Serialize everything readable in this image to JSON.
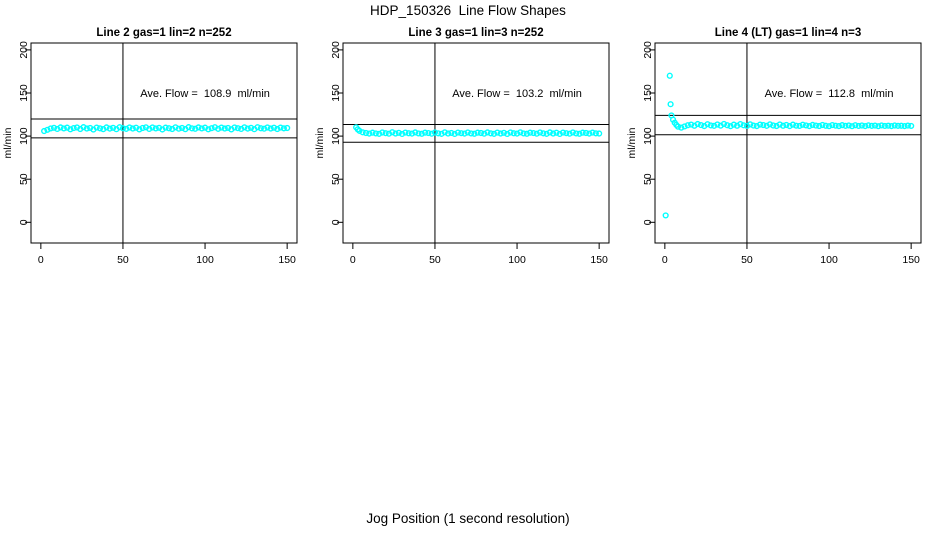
{
  "page": {
    "title": "HDP_150326  Line Flow Shapes",
    "xlabel": "Jog Position (1 second resolution)"
  },
  "colors": {
    "points": "#00ffff",
    "axis": "#000000",
    "background": "#ffffff"
  },
  "chart_data": [
    {
      "type": "scatter",
      "title": "Line 2 gas=1 lin=2 n=252",
      "annotation": "Ave. Flow =  108.9  ml/min",
      "ave_flow": 108.9,
      "n": 252,
      "ylabel": "ml/min",
      "x_ticks": [
        "0",
        "50",
        "100",
        "150"
      ],
      "x_tick_values": [
        0,
        50,
        100,
        150
      ],
      "y_ticks": [
        "0",
        "50",
        "100",
        "150",
        "200"
      ],
      "y_tick_values": [
        0,
        50,
        100,
        150,
        200
      ],
      "x_range": [
        -6,
        156
      ],
      "y_range": [
        -24,
        208
      ],
      "grid": false,
      "vline_x": 50,
      "hlines": [
        119.8,
        98.0
      ],
      "annotation_pos": [
        100,
        150
      ],
      "outliers": [],
      "points": [
        [
          2,
          105.9
        ],
        [
          4,
          107.3
        ],
        [
          6,
          108.9
        ],
        [
          8,
          109.6
        ],
        [
          10,
          108.3
        ],
        [
          12,
          110.1
        ],
        [
          14,
          108.9
        ],
        [
          16,
          109.8
        ],
        [
          18,
          107.9
        ],
        [
          20,
          109.3
        ],
        [
          22,
          110.0
        ],
        [
          24,
          108.2
        ],
        [
          26,
          110.4
        ],
        [
          28,
          108.8
        ],
        [
          30,
          109.5
        ],
        [
          32,
          107.6
        ],
        [
          34,
          109.9
        ],
        [
          36,
          109.0
        ],
        [
          38,
          108.1
        ],
        [
          40,
          110.1
        ],
        [
          42,
          108.7
        ],
        [
          44,
          109.6
        ],
        [
          46,
          108.0
        ],
        [
          48,
          110.3
        ],
        [
          50,
          109.1
        ],
        [
          52,
          108.4
        ],
        [
          54,
          110.0
        ],
        [
          56,
          108.8
        ],
        [
          58,
          109.7
        ],
        [
          60,
          107.8
        ],
        [
          62,
          109.4
        ],
        [
          64,
          110.2
        ],
        [
          66,
          108.3
        ],
        [
          68,
          110.0
        ],
        [
          70,
          108.9
        ],
        [
          72,
          109.6
        ],
        [
          74,
          107.7
        ],
        [
          76,
          109.8
        ],
        [
          78,
          109.1
        ],
        [
          80,
          108.2
        ],
        [
          82,
          110.2
        ],
        [
          84,
          108.6
        ],
        [
          86,
          109.5
        ],
        [
          88,
          108.1
        ],
        [
          90,
          110.4
        ],
        [
          92,
          109.0
        ],
        [
          94,
          108.5
        ],
        [
          96,
          110.1
        ],
        [
          98,
          108.9
        ],
        [
          100,
          109.8
        ],
        [
          102,
          107.9
        ],
        [
          104,
          109.2
        ],
        [
          106,
          110.3
        ],
        [
          108,
          108.4
        ],
        [
          110,
          109.9
        ],
        [
          112,
          108.8
        ],
        [
          114,
          109.5
        ],
        [
          116,
          107.8
        ],
        [
          118,
          110.0
        ],
        [
          120,
          109.2
        ],
        [
          122,
          108.3
        ],
        [
          124,
          110.2
        ],
        [
          126,
          108.7
        ],
        [
          128,
          109.6
        ],
        [
          130,
          108.0
        ],
        [
          132,
          110.3
        ],
        [
          134,
          109.1
        ],
        [
          136,
          108.6
        ],
        [
          138,
          110.0
        ],
        [
          140,
          108.8
        ],
        [
          142,
          109.7
        ],
        [
          144,
          108.2
        ],
        [
          146,
          109.9
        ],
        [
          148,
          109.0
        ],
        [
          150,
          109.4
        ]
      ]
    },
    {
      "type": "scatter",
      "title": "Line 3 gas=1 lin=3 n=252",
      "annotation": "Ave. Flow =  103.2  ml/min",
      "ave_flow": 103.2,
      "n": 252,
      "ylabel": "ml/min",
      "x_ticks": [
        "0",
        "50",
        "100",
        "150"
      ],
      "x_tick_values": [
        0,
        50,
        100,
        150
      ],
      "y_ticks": [
        "0",
        "50",
        "100",
        "150",
        "200"
      ],
      "y_tick_values": [
        0,
        50,
        100,
        150,
        200
      ],
      "x_range": [
        -6,
        156
      ],
      "y_range": [
        -24,
        208
      ],
      "grid": false,
      "vline_x": 50,
      "hlines": [
        113.5,
        92.9
      ],
      "annotation_pos": [
        100,
        150
      ],
      "outliers": [],
      "points": [
        [
          2,
          110.2
        ],
        [
          3,
          107.8
        ],
        [
          4,
          106.1
        ],
        [
          6,
          104.4
        ],
        [
          8,
          103.6
        ],
        [
          10,
          102.9
        ],
        [
          12,
          104.0
        ],
        [
          14,
          103.1
        ],
        [
          16,
          102.6
        ],
        [
          18,
          104.2
        ],
        [
          20,
          103.4
        ],
        [
          22,
          102.8
        ],
        [
          24,
          104.5
        ],
        [
          26,
          103.0
        ],
        [
          28,
          103.8
        ],
        [
          30,
          102.5
        ],
        [
          32,
          104.1
        ],
        [
          34,
          103.3
        ],
        [
          36,
          102.9
        ],
        [
          38,
          104.3
        ],
        [
          40,
          103.1
        ],
        [
          42,
          102.7
        ],
        [
          44,
          104.0
        ],
        [
          46,
          103.5
        ],
        [
          48,
          102.8
        ],
        [
          50,
          104.2
        ],
        [
          52,
          103.2
        ],
        [
          54,
          102.6
        ],
        [
          56,
          104.4
        ],
        [
          58,
          103.0
        ],
        [
          60,
          103.7
        ],
        [
          62,
          102.5
        ],
        [
          64,
          104.1
        ],
        [
          66,
          103.4
        ],
        [
          68,
          102.9
        ],
        [
          70,
          104.2
        ],
        [
          72,
          103.1
        ],
        [
          74,
          102.7
        ],
        [
          76,
          104.0
        ],
        [
          78,
          103.6
        ],
        [
          80,
          102.8
        ],
        [
          82,
          104.3
        ],
        [
          84,
          103.2
        ],
        [
          86,
          102.6
        ],
        [
          88,
          104.1
        ],
        [
          90,
          103.0
        ],
        [
          92,
          103.8
        ],
        [
          94,
          102.5
        ],
        [
          96,
          104.2
        ],
        [
          98,
          103.3
        ],
        [
          100,
          102.9
        ],
        [
          102,
          104.4
        ],
        [
          104,
          103.1
        ],
        [
          106,
          102.7
        ],
        [
          108,
          104.0
        ],
        [
          110,
          103.5
        ],
        [
          112,
          102.8
        ],
        [
          114,
          104.2
        ],
        [
          116,
          103.2
        ],
        [
          118,
          102.6
        ],
        [
          120,
          104.3
        ],
        [
          122,
          103.0
        ],
        [
          124,
          103.9
        ],
        [
          126,
          102.5
        ],
        [
          128,
          104.1
        ],
        [
          130,
          103.4
        ],
        [
          132,
          102.8
        ],
        [
          134,
          104.2
        ],
        [
          136,
          103.1
        ],
        [
          138,
          102.7
        ],
        [
          140,
          104.0
        ],
        [
          142,
          103.6
        ],
        [
          144,
          102.9
        ],
        [
          146,
          104.1
        ],
        [
          148,
          103.2
        ],
        [
          150,
          103.0
        ]
      ]
    },
    {
      "type": "scatter",
      "title": "Line 4 (LT) gas=1 lin=4 n=3",
      "annotation": "Ave. Flow =  112.8  ml/min",
      "ave_flow": 112.8,
      "n": 3,
      "ylabel": "ml/min",
      "x_ticks": [
        "0",
        "50",
        "100",
        "150"
      ],
      "x_tick_values": [
        0,
        50,
        100,
        150
      ],
      "y_ticks": [
        "0",
        "50",
        "100",
        "150",
        "200"
      ],
      "y_tick_values": [
        0,
        50,
        100,
        150,
        200
      ],
      "x_range": [
        -6,
        156
      ],
      "y_range": [
        -24,
        208
      ],
      "grid": false,
      "vline_x": 50,
      "hlines": [
        124.1,
        101.5
      ],
      "annotation_pos": [
        100,
        150
      ],
      "outliers": [
        [
          3,
          170
        ],
        [
          3.5,
          137
        ],
        [
          0.5,
          8
        ]
      ],
      "points": [
        [
          4,
          124.0
        ],
        [
          5,
          119.0
        ],
        [
          6,
          115.5
        ],
        [
          7,
          113.0
        ],
        [
          8,
          111.0
        ],
        [
          10,
          109.8
        ],
        [
          12,
          111.2
        ],
        [
          14,
          112.6
        ],
        [
          16,
          113.4
        ],
        [
          18,
          112.0
        ],
        [
          20,
          114.0
        ],
        [
          22,
          112.8
        ],
        [
          24,
          111.6
        ],
        [
          26,
          113.8
        ],
        [
          28,
          112.4
        ],
        [
          30,
          111.9
        ],
        [
          32,
          113.5
        ],
        [
          34,
          112.1
        ],
        [
          36,
          114.1
        ],
        [
          38,
          112.6
        ],
        [
          40,
          111.5
        ],
        [
          42,
          113.3
        ],
        [
          44,
          112.0
        ],
        [
          46,
          113.9
        ],
        [
          48,
          112.5
        ],
        [
          50,
          111.8
        ],
        [
          52,
          113.6
        ],
        [
          54,
          112.2
        ],
        [
          56,
          111.6
        ],
        [
          58,
          113.4
        ],
        [
          60,
          112.8
        ],
        [
          62,
          111.9
        ],
        [
          64,
          113.7
        ],
        [
          66,
          112.3
        ],
        [
          68,
          111.7
        ],
        [
          70,
          113.5
        ],
        [
          72,
          112.0
        ],
        [
          74,
          112.9
        ],
        [
          76,
          111.6
        ],
        [
          78,
          113.3
        ],
        [
          80,
          112.1
        ],
        [
          82,
          111.8
        ],
        [
          84,
          113.2
        ],
        [
          86,
          112.4
        ],
        [
          88,
          111.6
        ],
        [
          90,
          113.0
        ],
        [
          92,
          112.2
        ],
        [
          94,
          111.7
        ],
        [
          96,
          112.9
        ],
        [
          98,
          112.0
        ],
        [
          100,
          111.5
        ],
        [
          102,
          112.8
        ],
        [
          104,
          112.1
        ],
        [
          106,
          111.6
        ],
        [
          108,
          112.7
        ],
        [
          110,
          111.9
        ],
        [
          112,
          112.4
        ],
        [
          114,
          111.5
        ],
        [
          116,
          112.6
        ],
        [
          118,
          111.8
        ],
        [
          120,
          112.3
        ],
        [
          122,
          111.6
        ],
        [
          124,
          112.5
        ],
        [
          126,
          111.9
        ],
        [
          128,
          112.2
        ],
        [
          130,
          111.5
        ],
        [
          132,
          112.4
        ],
        [
          134,
          111.8
        ],
        [
          136,
          112.1
        ],
        [
          138,
          111.6
        ],
        [
          140,
          112.3
        ],
        [
          142,
          111.9
        ],
        [
          144,
          112.0
        ],
        [
          146,
          111.6
        ],
        [
          148,
          112.2
        ],
        [
          150,
          111.8
        ]
      ]
    }
  ]
}
